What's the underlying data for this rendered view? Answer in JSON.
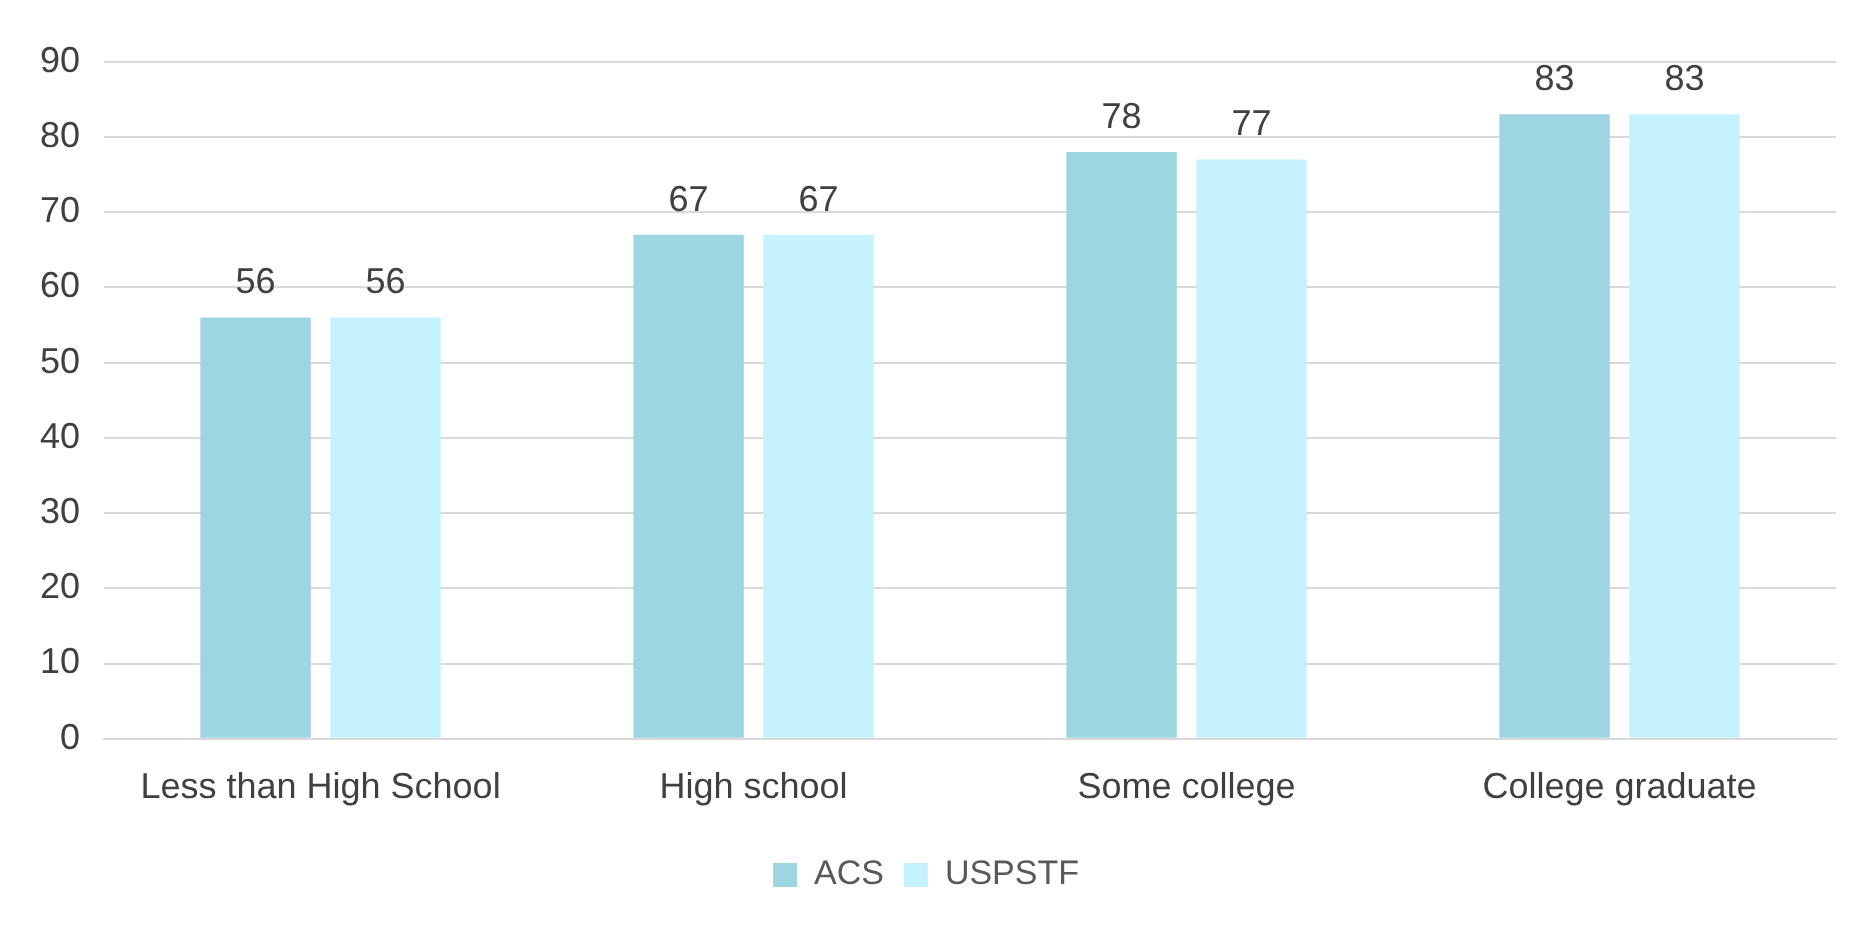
{
  "chart_data": {
    "type": "bar",
    "categories": [
      "Less than High School",
      "High school",
      "Some college",
      "College graduate"
    ],
    "series": [
      {
        "name": "ACS",
        "color": "#9dd5e0",
        "values": [
          56,
          67,
          78,
          83
        ]
      },
      {
        "name": "USPSTF",
        "color": "#c6f2fc",
        "values": [
          56,
          67,
          77,
          83
        ]
      }
    ],
    "ylim": [
      0,
      90
    ],
    "yticks": [
      0,
      10,
      20,
      30,
      40,
      50,
      60,
      70,
      80,
      90
    ],
    "grid": "y",
    "legend": "bottom",
    "data_labels": true
  }
}
